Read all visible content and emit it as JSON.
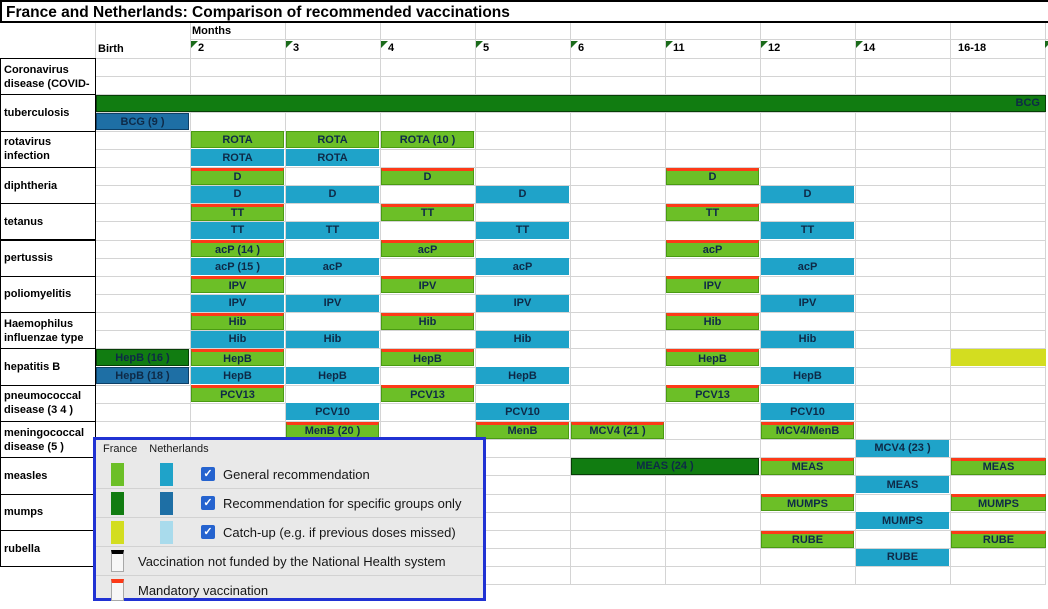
{
  "title": "France and Netherlands: Comparison of recommended vaccinations",
  "header": {
    "months_label": "Months",
    "birth_label": "Birth",
    "month_columns": [
      "2",
      "3",
      "4",
      "5",
      "6",
      "11",
      "12",
      "14",
      "16-18"
    ],
    "comment_markers": [
      true,
      true,
      true,
      true,
      true,
      true,
      true,
      true,
      false
    ],
    "edge_comment_marker": true
  },
  "colors": {
    "france_general": "#6CBF27",
    "france_general_border": "#4a9b12",
    "netherlands_general": "#1FA3C9",
    "france_specific": "#117C11",
    "netherlands_specific": "#1E6FA5",
    "france_catchup": "#D3DD20",
    "netherlands_catchup": "#A9DBEC",
    "mandatory_red": "#FD3A18",
    "legend_border": "#2032D3"
  },
  "rows": [
    {
      "label": [
        "Coronavirus",
        "disease (COVID-"
      ],
      "france": [],
      "netherlands": []
    },
    {
      "label": [
        "tuberculosis"
      ],
      "france": [
        {
          "col": 0,
          "span": 10,
          "text": "BCG",
          "style": "specific",
          "align": "right"
        }
      ],
      "netherlands": [
        {
          "col": 0,
          "text": "BCG (9 )",
          "style": "specific"
        }
      ]
    },
    {
      "label": [
        "rotavirus",
        "infection"
      ],
      "france": [
        {
          "col": 1,
          "text": "ROTA"
        },
        {
          "col": 2,
          "text": "ROTA"
        },
        {
          "col": 3,
          "text": "ROTA (10 )"
        }
      ],
      "netherlands": [
        {
          "col": 1,
          "text": "ROTA"
        },
        {
          "col": 2,
          "text": "ROTA"
        }
      ]
    },
    {
      "label": [
        "diphtheria"
      ],
      "france": [
        {
          "col": 1,
          "text": "D",
          "mandatory": true
        },
        {
          "col": 3,
          "text": "D",
          "mandatory": true
        },
        {
          "col": 6,
          "text": "D",
          "mandatory": true
        }
      ],
      "netherlands": [
        {
          "col": 1,
          "text": "D"
        },
        {
          "col": 2,
          "text": "D"
        },
        {
          "col": 4,
          "text": "D"
        },
        {
          "col": 7,
          "text": "D"
        }
      ]
    },
    {
      "label": [
        "tetanus"
      ],
      "france": [
        {
          "col": 1,
          "text": "TT",
          "mandatory": true
        },
        {
          "col": 3,
          "text": "TT",
          "mandatory": true
        },
        {
          "col": 6,
          "text": "TT",
          "mandatory": true
        }
      ],
      "netherlands": [
        {
          "col": 1,
          "text": "TT"
        },
        {
          "col": 2,
          "text": "TT"
        },
        {
          "col": 4,
          "text": "TT"
        },
        {
          "col": 7,
          "text": "TT"
        }
      ]
    },
    {
      "label": [
        "pertussis"
      ],
      "france": [
        {
          "col": 1,
          "text": "acP (14 )",
          "mandatory": true
        },
        {
          "col": 3,
          "text": "acP",
          "mandatory": true
        },
        {
          "col": 6,
          "text": "acP",
          "mandatory": true
        }
      ],
      "netherlands": [
        {
          "col": 1,
          "text": "acP (15 )"
        },
        {
          "col": 2,
          "text": "acP"
        },
        {
          "col": 4,
          "text": "acP"
        },
        {
          "col": 7,
          "text": "acP"
        }
      ]
    },
    {
      "label": [
        "poliomyelitis"
      ],
      "france": [
        {
          "col": 1,
          "text": "IPV",
          "mandatory": true
        },
        {
          "col": 3,
          "text": "IPV",
          "mandatory": true
        },
        {
          "col": 6,
          "text": "IPV",
          "mandatory": true
        }
      ],
      "netherlands": [
        {
          "col": 1,
          "text": "IPV"
        },
        {
          "col": 2,
          "text": "IPV"
        },
        {
          "col": 4,
          "text": "IPV"
        },
        {
          "col": 7,
          "text": "IPV"
        }
      ]
    },
    {
      "label": [
        "Haemophilus",
        "influenzae type"
      ],
      "france": [
        {
          "col": 1,
          "text": "Hib",
          "mandatory": true
        },
        {
          "col": 3,
          "text": "Hib",
          "mandatory": true
        },
        {
          "col": 6,
          "text": "Hib",
          "mandatory": true
        }
      ],
      "netherlands": [
        {
          "col": 1,
          "text": "Hib"
        },
        {
          "col": 2,
          "text": "Hib"
        },
        {
          "col": 4,
          "text": "Hib"
        },
        {
          "col": 7,
          "text": "Hib"
        }
      ]
    },
    {
      "label": [
        "hepatitis B"
      ],
      "france": [
        {
          "col": 0,
          "text": "HepB (16 )",
          "style": "specific"
        },
        {
          "col": 1,
          "text": "HepB",
          "mandatory": true
        },
        {
          "col": 3,
          "text": "HepB",
          "mandatory": true
        },
        {
          "col": 6,
          "text": "HepB",
          "mandatory": true
        },
        {
          "col": 9,
          "text": "",
          "style": "catchup"
        }
      ],
      "netherlands": [
        {
          "col": 0,
          "text": "HepB (18 )",
          "style": "specific"
        },
        {
          "col": 1,
          "text": "HepB"
        },
        {
          "col": 2,
          "text": "HepB"
        },
        {
          "col": 4,
          "text": "HepB"
        },
        {
          "col": 7,
          "text": "HepB"
        }
      ]
    },
    {
      "label": [
        "pneumococcal",
        "disease (3 4 )"
      ],
      "france": [
        {
          "col": 1,
          "text": "PCV13",
          "mandatory": true
        },
        {
          "col": 3,
          "text": "PCV13",
          "mandatory": true
        },
        {
          "col": 6,
          "text": "PCV13",
          "mandatory": true
        }
      ],
      "netherlands": [
        {
          "col": 2,
          "text": "PCV10"
        },
        {
          "col": 4,
          "text": "PCV10"
        },
        {
          "col": 7,
          "text": "PCV10"
        }
      ]
    },
    {
      "label": [
        "meningococcal",
        "disease (5 )"
      ],
      "france": [
        {
          "col": 2,
          "text": "MenB (20 )",
          "mandatory": true
        },
        {
          "col": 4,
          "text": "MenB",
          "mandatory": true
        },
        {
          "col": 5,
          "text": "MCV4 (21 )",
          "mandatory": true
        },
        {
          "col": 7,
          "text": "MCV4/MenB",
          "mandatory": true
        }
      ],
      "netherlands": [
        {
          "col": 8,
          "text": "MCV4 (23 )"
        }
      ]
    },
    {
      "label": [
        "measles"
      ],
      "france": [
        {
          "col": 5,
          "span": 2,
          "text": "MEAS (24 )",
          "style": "specific"
        },
        {
          "col": 7,
          "text": "MEAS",
          "mandatory": true
        },
        {
          "col": 9,
          "text": "MEAS",
          "mandatory": true
        }
      ],
      "netherlands": [
        {
          "col": 8,
          "text": "MEAS"
        }
      ]
    },
    {
      "label": [
        "mumps"
      ],
      "france": [
        {
          "col": 7,
          "text": "MUMPS",
          "mandatory": true
        },
        {
          "col": 9,
          "text": "MUMPS",
          "mandatory": true
        }
      ],
      "netherlands": [
        {
          "col": 8,
          "text": "MUMPS"
        }
      ]
    },
    {
      "label": [
        "rubella"
      ],
      "france": [
        {
          "col": 7,
          "text": "RUBE",
          "mandatory": true
        },
        {
          "col": 9,
          "text": "RUBE",
          "mandatory": true
        }
      ],
      "netherlands": [
        {
          "col": 8,
          "text": "RUBE"
        }
      ]
    }
  ],
  "legend": {
    "france_label": "France",
    "netherlands_label": "Netherlands",
    "rows": [
      {
        "type": "dual",
        "checkbox": true,
        "style": "general",
        "label": "General recommendation"
      },
      {
        "type": "dual",
        "checkbox": true,
        "style": "specific",
        "label": "Recommendation for specific groups only"
      },
      {
        "type": "dual",
        "checkbox": true,
        "style": "catchup",
        "label": "Catch-up (e.g. if previous doses missed)"
      },
      {
        "type": "single",
        "checkbox": false,
        "style": "notfunded",
        "label": "Vaccination not funded by the National Health system"
      },
      {
        "type": "single",
        "checkbox": false,
        "style": "mandatory",
        "label": "Mandatory vaccination"
      }
    ]
  }
}
